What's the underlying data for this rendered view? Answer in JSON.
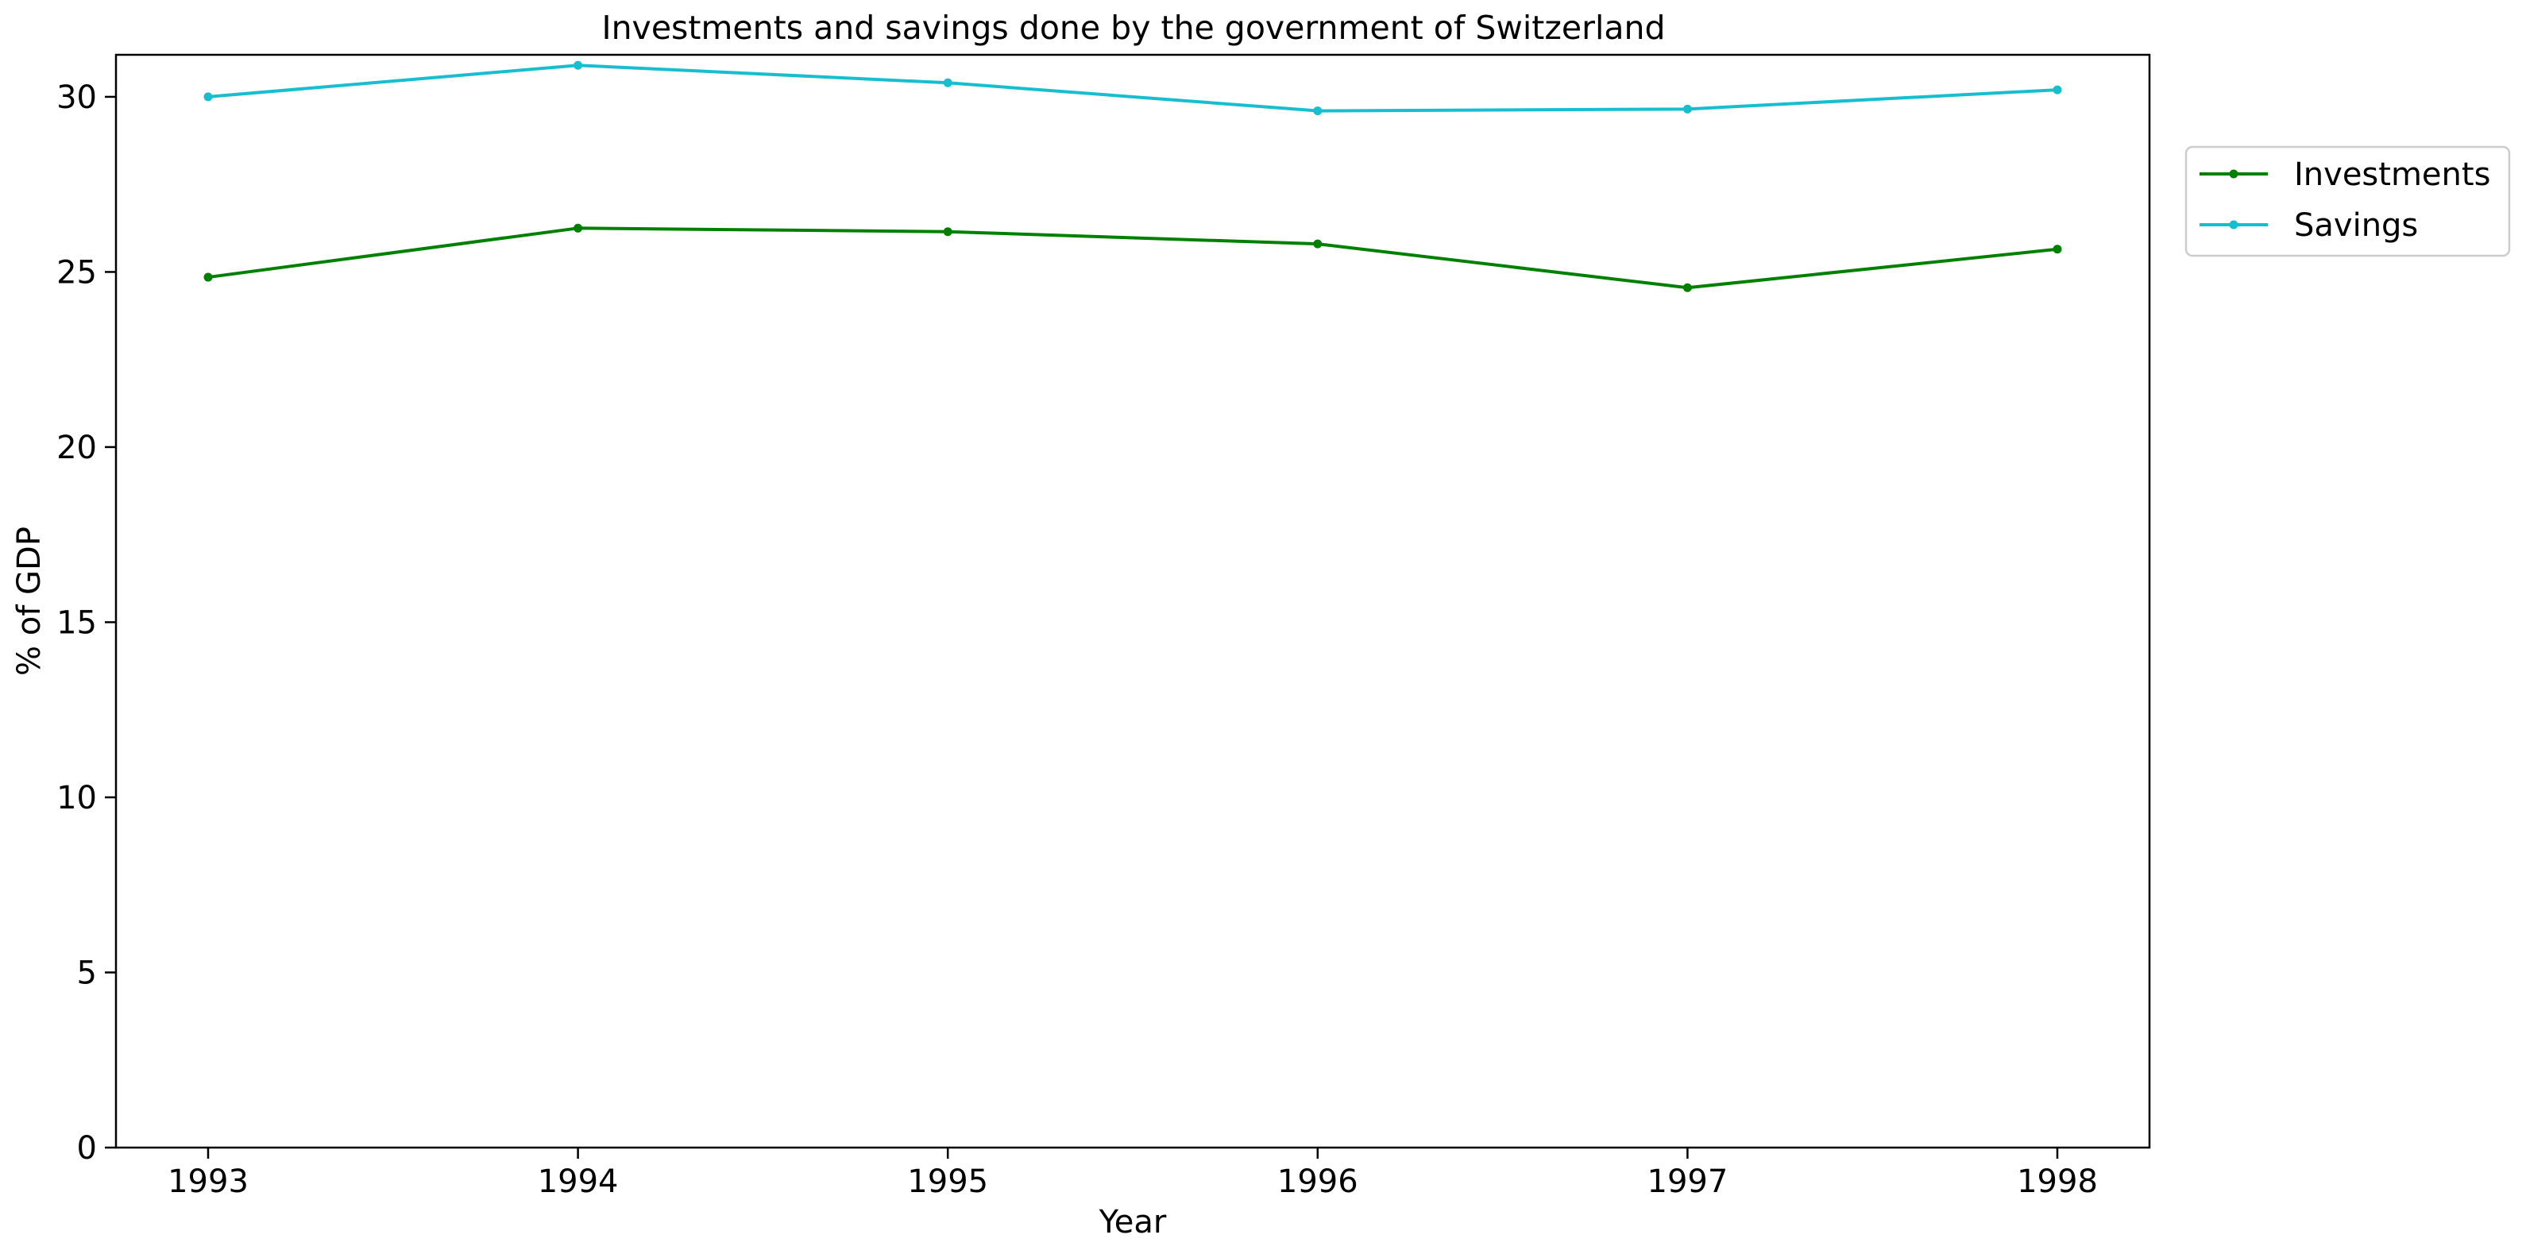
{
  "chart_data": {
    "type": "line",
    "title": "Investments and savings done by the government of Switzerland",
    "xlabel": "Year",
    "ylabel": "% of GDP",
    "categories": [
      "1993",
      "1994",
      "1995",
      "1996",
      "1997",
      "1998"
    ],
    "series": [
      {
        "name": "Investments",
        "color": "#008000",
        "values": [
          24.85,
          26.25,
          26.15,
          25.8,
          24.55,
          25.65
        ]
      },
      {
        "name": "Savings",
        "color": "#17becf",
        "values": [
          30.0,
          30.9,
          30.4,
          29.6,
          29.65,
          30.2
        ]
      }
    ],
    "ylim": [
      0,
      31.2
    ],
    "yticks": [
      0,
      5,
      10,
      15,
      20,
      25,
      30
    ],
    "grid": false,
    "legend_position": "outside-top-right",
    "marker": "point"
  }
}
